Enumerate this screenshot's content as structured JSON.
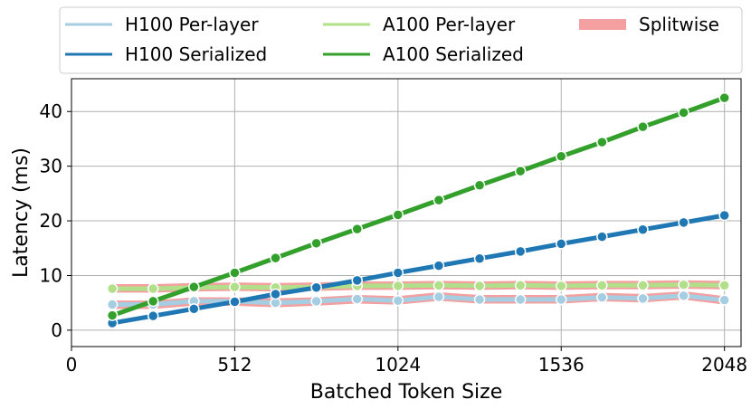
{
  "chart_data": {
    "type": "line",
    "xlabel": "Batched Token Size",
    "ylabel": "Latency (ms)",
    "xlim": [
      0,
      2100
    ],
    "ylim": [
      -3,
      46
    ],
    "xticks": [
      0,
      512,
      1024,
      1536,
      2048
    ],
    "yticks": [
      0,
      10,
      20,
      30,
      40
    ],
    "grid": true,
    "legend_position": "top",
    "x": [
      128,
      256,
      384,
      512,
      640,
      768,
      896,
      1024,
      1152,
      1280,
      1408,
      1536,
      1664,
      1792,
      1920,
      2048
    ],
    "series": [
      {
        "name": "Splitwise",
        "color": "#f4a0a0",
        "style": "band",
        "upper": [
          5.3,
          5.3,
          5.9,
          5.9,
          5.7,
          5.9,
          6.3,
          6.1,
          6.8,
          6.3,
          6.3,
          6.3,
          6.7,
          6.5,
          7.0,
          6.1
        ],
        "lower": [
          4.0,
          4.0,
          4.6,
          4.6,
          4.3,
          4.6,
          5.0,
          4.8,
          5.5,
          5.0,
          5.0,
          5.0,
          5.4,
          5.2,
          5.7,
          4.8
        ]
      },
      {
        "name": "Splitwise",
        "color": "#f4a0a0",
        "style": "band",
        "upper": [
          8.3,
          8.3,
          8.5,
          8.6,
          8.5,
          8.6,
          8.8,
          8.8,
          8.9,
          8.8,
          8.9,
          8.8,
          8.9,
          8.9,
          9.0,
          8.9
        ],
        "lower": [
          7.0,
          7.0,
          7.2,
          7.3,
          7.2,
          7.3,
          7.5,
          7.5,
          7.6,
          7.5,
          7.6,
          7.5,
          7.6,
          7.6,
          7.7,
          7.6
        ]
      },
      {
        "name": "H100 Per-layer",
        "color": "#a6cee3",
        "values": [
          4.7,
          4.7,
          5.3,
          5.3,
          5.0,
          5.3,
          5.7,
          5.4,
          6.1,
          5.6,
          5.6,
          5.6,
          6.0,
          5.8,
          6.3,
          5.5
        ]
      },
      {
        "name": "A100 Per-layer",
        "color": "#b2df8a",
        "values": [
          7.6,
          7.6,
          7.8,
          7.9,
          7.8,
          7.9,
          8.1,
          8.1,
          8.2,
          8.1,
          8.2,
          8.1,
          8.2,
          8.2,
          8.3,
          8.2
        ]
      },
      {
        "name": "H100 Serialized",
        "color": "#1f78b4",
        "values": [
          1.3,
          2.6,
          3.9,
          5.2,
          6.6,
          7.8,
          9.1,
          10.5,
          11.8,
          13.1,
          14.4,
          15.8,
          17.1,
          18.4,
          19.7,
          21.0
        ]
      },
      {
        "name": "A100 Serialized",
        "color": "#33a02c",
        "values": [
          2.7,
          5.3,
          7.9,
          10.5,
          13.2,
          15.9,
          18.5,
          21.1,
          23.8,
          26.5,
          29.1,
          31.8,
          34.4,
          37.2,
          39.8,
          42.5
        ]
      }
    ],
    "legend": [
      {
        "label": "H100 Per-layer",
        "color": "#a6cee3",
        "kind": "line"
      },
      {
        "label": "H100 Serialized",
        "color": "#1f78b4",
        "kind": "line"
      },
      {
        "label": "A100 Per-layer",
        "color": "#b2df8a",
        "kind": "line"
      },
      {
        "label": "A100 Serialized",
        "color": "#33a02c",
        "kind": "line"
      },
      {
        "label": "Splitwise",
        "color": "#f4a0a0",
        "kind": "band"
      }
    ]
  }
}
